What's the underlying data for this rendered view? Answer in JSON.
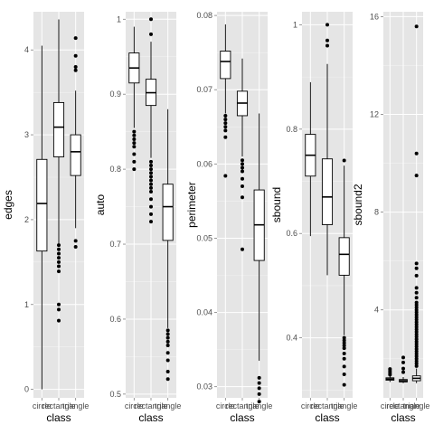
{
  "chart_data": [
    {
      "type": "box",
      "xlabel": "class",
      "ylabel": "edges",
      "categories": [
        "circle",
        "rectangle",
        "triangle"
      ],
      "ylim": [
        -0.1,
        4.45
      ],
      "yticks": [
        0,
        1,
        2,
        3,
        4
      ],
      "boxes": [
        {
          "category": "circle",
          "min": 0,
          "q1": 1.63,
          "median": 2.19,
          "q3": 2.71,
          "max": 4.05,
          "outliers": []
        },
        {
          "category": "rectangle",
          "min": 1.72,
          "q1": 2.74,
          "median": 3.09,
          "q3": 3.38,
          "max": 4.36,
          "outliers": [
            0.81,
            0.94,
            1.0,
            1.39,
            1.45,
            1.5,
            1.55,
            1.6,
            1.65,
            1.7
          ]
        },
        {
          "category": "triangle",
          "min": 1.9,
          "q1": 2.52,
          "median": 2.8,
          "q3": 3.0,
          "max": 3.52,
          "outliers": [
            1.68,
            1.75,
            3.76,
            3.8,
            3.93,
            4.14
          ]
        }
      ]
    },
    {
      "type": "box",
      "xlabel": "class",
      "ylabel": "auto",
      "categories": [
        "circle",
        "rectangle",
        "triangle"
      ],
      "ylim": [
        0.495,
        1.01
      ],
      "yticks": [
        0.5,
        0.6,
        0.7,
        0.8,
        0.9,
        1.0
      ],
      "boxes": [
        {
          "category": "circle",
          "min": 0.855,
          "q1": 0.915,
          "median": 0.935,
          "q3": 0.955,
          "max": 0.99,
          "outliers": [
            0.8,
            0.81,
            0.82,
            0.83,
            0.835,
            0.84,
            0.845,
            0.85
          ]
        },
        {
          "category": "rectangle",
          "min": 0.815,
          "q1": 0.885,
          "median": 0.902,
          "q3": 0.92,
          "max": 0.97,
          "outliers": [
            0.73,
            0.74,
            0.75,
            0.76,
            0.77,
            0.775,
            0.78,
            0.785,
            0.79,
            0.795,
            0.8,
            0.805,
            0.81,
            0.98,
            1.0
          ]
        },
        {
          "category": "triangle",
          "min": 0.588,
          "q1": 0.705,
          "median": 0.75,
          "q3": 0.78,
          "max": 0.88,
          "outliers": [
            0.52,
            0.53,
            0.545,
            0.555,
            0.565,
            0.57,
            0.575,
            0.58,
            0.585
          ]
        }
      ]
    },
    {
      "type": "box",
      "xlabel": "class",
      "ylabel": "perimeter",
      "categories": [
        "circle",
        "rectangle",
        "triangle"
      ],
      "ylim": [
        0.0285,
        0.0805
      ],
      "yticks": [
        0.03,
        0.04,
        0.05,
        0.06,
        0.07,
        0.08
      ],
      "boxes": [
        {
          "category": "circle",
          "min": 0.0668,
          "q1": 0.0715,
          "median": 0.0738,
          "q3": 0.0752,
          "max": 0.0788,
          "outliers": [
            0.0584,
            0.0636,
            0.0645,
            0.065,
            0.0655,
            0.066,
            0.0665
          ]
        },
        {
          "category": "rectangle",
          "min": 0.061,
          "q1": 0.0665,
          "median": 0.0682,
          "q3": 0.0698,
          "max": 0.0742,
          "outliers": [
            0.0485,
            0.0555,
            0.057,
            0.058,
            0.059,
            0.0595,
            0.06,
            0.0605
          ]
        },
        {
          "category": "triangle",
          "min": 0.0335,
          "q1": 0.047,
          "median": 0.0518,
          "q3": 0.0565,
          "max": 0.0668,
          "outliers": [
            0.028,
            0.029,
            0.0298,
            0.0305,
            0.0312
          ]
        }
      ]
    },
    {
      "type": "box",
      "xlabel": "class",
      "ylabel": "sbound",
      "categories": [
        "circle",
        "rectangle",
        "triangle"
      ],
      "ylim": [
        0.285,
        1.025
      ],
      "yticks": [
        0.4,
        0.6,
        0.8,
        1.0
      ],
      "boxes": [
        {
          "category": "circle",
          "min": 0.595,
          "q1": 0.71,
          "median": 0.75,
          "q3": 0.79,
          "max": 0.89,
          "outliers": []
        },
        {
          "category": "rectangle",
          "min": 0.52,
          "q1": 0.617,
          "median": 0.67,
          "q3": 0.743,
          "max": 0.925,
          "outliers": [
            0.96,
            0.97,
            1.0
          ]
        },
        {
          "category": "triangle",
          "min": 0.405,
          "q1": 0.52,
          "median": 0.56,
          "q3": 0.592,
          "max": 0.73,
          "outliers": [
            0.31,
            0.33,
            0.345,
            0.36,
            0.37,
            0.38,
            0.385,
            0.39,
            0.395,
            0.4,
            0.74
          ]
        }
      ]
    },
    {
      "type": "box",
      "xlabel": "class",
      "ylabel": "sbound2",
      "categories": [
        "circle",
        "rectangle",
        "triangle"
      ],
      "ylim": [
        0.4,
        16.2
      ],
      "yticks": [
        4,
        8,
        12,
        16
      ],
      "boxes": [
        {
          "category": "circle",
          "min": 1.05,
          "q1": 1.12,
          "median": 1.17,
          "q3": 1.22,
          "max": 1.3,
          "outliers": [
            1.35,
            1.42,
            1.5,
            1.58
          ]
        },
        {
          "category": "rectangle",
          "min": 1.0,
          "q1": 1.05,
          "median": 1.1,
          "q3": 1.15,
          "max": 1.25,
          "outliers": [
            1.45,
            1.6,
            1.85,
            2.05
          ]
        },
        {
          "category": "triangle",
          "min": 1.0,
          "q1": 1.1,
          "median": 1.2,
          "q3": 1.3,
          "max": 1.6,
          "outliers": [
            1.7,
            1.8,
            1.9,
            2.0,
            2.1,
            2.2,
            2.3,
            2.4,
            2.5,
            2.6,
            2.7,
            2.8,
            2.9,
            3.0,
            3.1,
            3.2,
            3.3,
            3.4,
            3.5,
            3.6,
            3.7,
            3.8,
            3.9,
            4.0,
            4.1,
            4.2,
            4.3,
            4.5,
            4.7,
            4.9,
            5.4,
            5.7,
            5.9,
            9.5,
            10.4,
            15.6
          ]
        }
      ]
    }
  ]
}
